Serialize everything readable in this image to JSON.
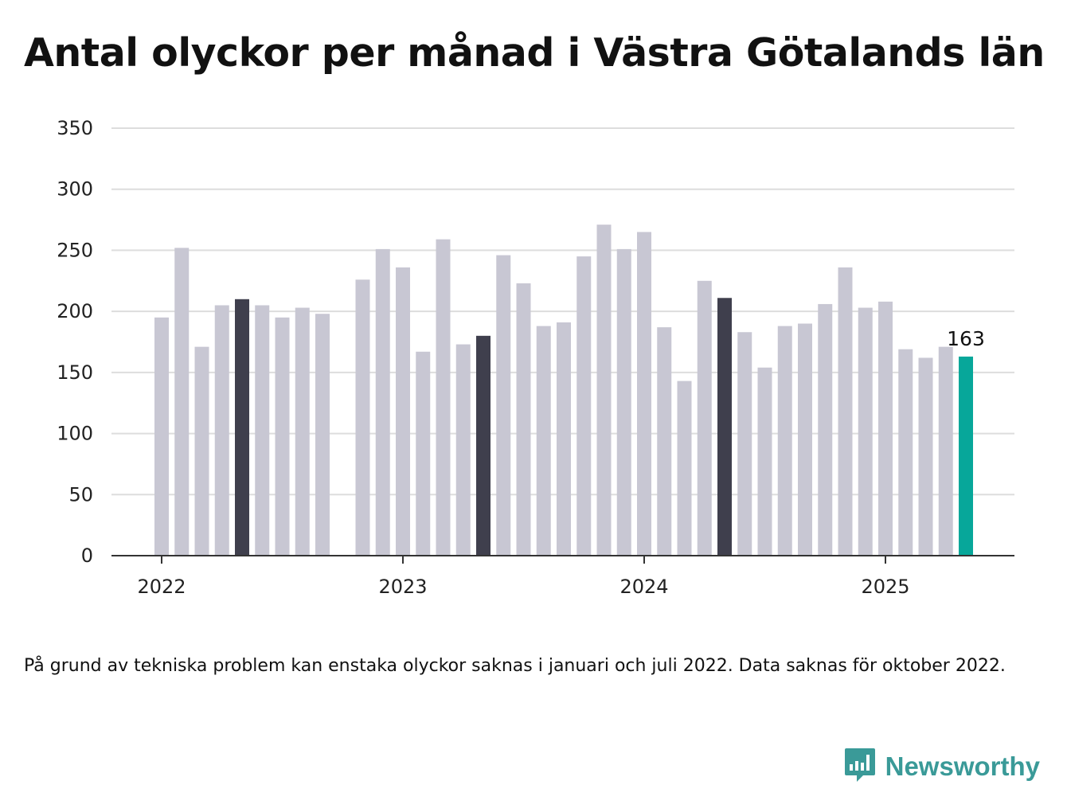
{
  "title": "Antal olyckor per månad i Västra Götalands län",
  "note": "På grund av tekniska problem kan enstaka olyckor saknas i januari och juli 2022. Data saknas för oktober 2022.",
  "brand": {
    "name": "Newsworthy",
    "icon": "newsworthy-logo-icon"
  },
  "colors": {
    "bar": "#c8c7d3",
    "highlight": "#3f3f4d",
    "latest": "#07a79a",
    "grid": "#dddddd",
    "axis": "#333333"
  },
  "chart_data": {
    "type": "bar",
    "title": "Antal olyckor per månad i Västra Götalands län",
    "xlabel": "",
    "ylabel": "",
    "ylim": [
      0,
      350
    ],
    "yticks": [
      0,
      50,
      100,
      150,
      200,
      250,
      300,
      350
    ],
    "xticks": [
      "2022",
      "2023",
      "2024",
      "2025"
    ],
    "grid": true,
    "categories": [
      "2022-01",
      "2022-02",
      "2022-03",
      "2022-04",
      "2022-05",
      "2022-06",
      "2022-07",
      "2022-08",
      "2022-09",
      "2022-10",
      "2022-11",
      "2022-12",
      "2023-01",
      "2023-02",
      "2023-03",
      "2023-04",
      "2023-05",
      "2023-06",
      "2023-07",
      "2023-08",
      "2023-09",
      "2023-10",
      "2023-11",
      "2023-12",
      "2024-01",
      "2024-02",
      "2024-03",
      "2024-04",
      "2024-05",
      "2024-06",
      "2024-07",
      "2024-08",
      "2024-09",
      "2024-10",
      "2024-11",
      "2024-12",
      "2025-01",
      "2025-02",
      "2025-03",
      "2025-04",
      "2025-05"
    ],
    "values": [
      195,
      252,
      171,
      205,
      210,
      205,
      195,
      203,
      198,
      null,
      226,
      251,
      236,
      167,
      259,
      173,
      180,
      246,
      223,
      188,
      191,
      245,
      271,
      251,
      265,
      187,
      143,
      225,
      211,
      183,
      154,
      188,
      190,
      206,
      236,
      203,
      208,
      169,
      162,
      171,
      163
    ],
    "highlighted": [
      "2022-05",
      "2023-05",
      "2024-05"
    ],
    "latest": "2025-05",
    "data_labels": [
      {
        "category": "2025-05",
        "text": "163"
      }
    ]
  }
}
